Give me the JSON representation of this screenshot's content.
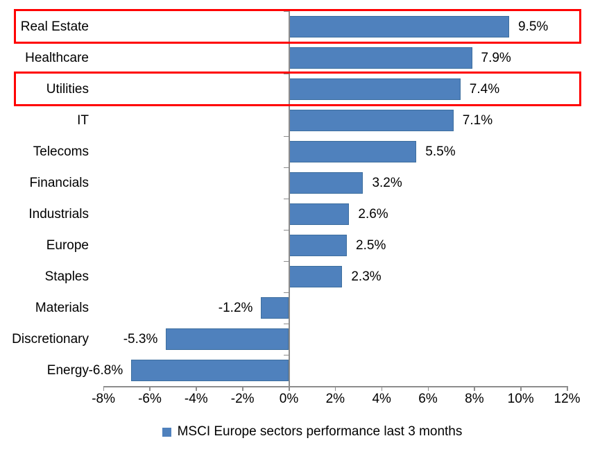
{
  "colors": {
    "bar": "#4F81BD",
    "bar_border": "#3D6E9E",
    "highlight_box": "#FF0000",
    "axis": "#8C8C8C",
    "text": "#000000"
  },
  "legend": {
    "label": "MSCI Europe sectors performance last 3 months"
  },
  "chart_data": {
    "type": "bar",
    "orientation": "horizontal",
    "title": "",
    "categories": [
      "Real Estate",
      "Healthcare",
      "Utilities",
      "IT",
      "Telecoms",
      "Financials",
      "Industrials",
      "Europe",
      "Staples",
      "Materials",
      "Discretionary",
      "Energy"
    ],
    "values": [
      9.5,
      7.9,
      7.4,
      7.1,
      5.5,
      3.2,
      2.6,
      2.5,
      2.3,
      -1.2,
      -5.3,
      -6.8
    ],
    "data_labels": [
      "9.5%",
      "7.9%",
      "7.4%",
      "7.1%",
      "5.5%",
      "3.2%",
      "2.6%",
      "2.5%",
      "2.3%",
      "-1.2%",
      "-5.3%",
      "-6.8%"
    ],
    "highlighted_categories": [
      "Real Estate",
      "Utilities"
    ],
    "x_axis": {
      "min": -8,
      "max": 12,
      "tick_step": 2,
      "tick_labels": [
        "-8%",
        "-6%",
        "-4%",
        "-2%",
        "0%",
        "2%",
        "4%",
        "6%",
        "8%",
        "10%",
        "12%"
      ]
    },
    "grid": false,
    "legend_entries": [
      "MSCI Europe sectors performance last 3 months"
    ],
    "legend_position": "bottom"
  }
}
